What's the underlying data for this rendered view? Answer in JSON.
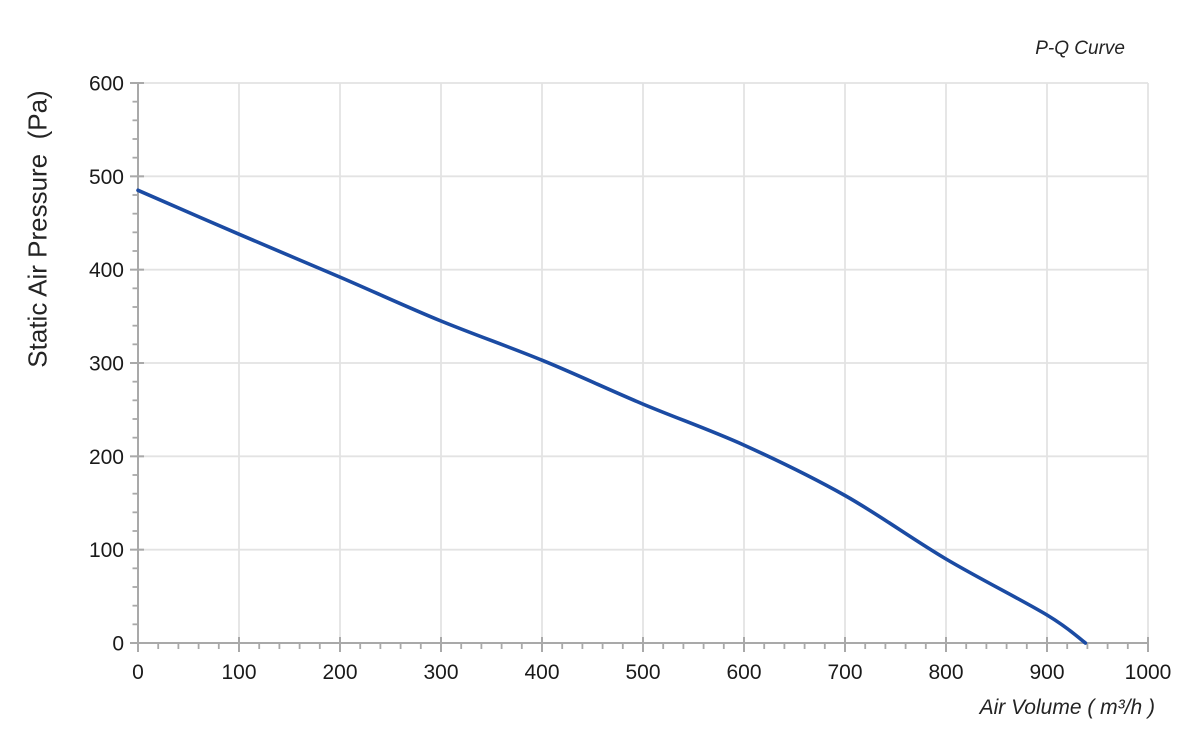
{
  "chart_data": {
    "type": "line",
    "title": "P-Q Curve",
    "xlabel": "Air Volume ( m³/h )",
    "ylabel": "Static Air Pressure  (Pa)",
    "xlim": [
      0,
      1000
    ],
    "ylim": [
      0,
      600
    ],
    "x_major_ticks": [
      0,
      100,
      200,
      300,
      400,
      500,
      600,
      700,
      800,
      900,
      1000
    ],
    "y_major_ticks": [
      0,
      100,
      200,
      300,
      400,
      500,
      600
    ],
    "x_minor_step": 20,
    "y_minor_step": 20,
    "grid": true,
    "legend": "none",
    "series": [
      {
        "name": "P-Q Curve",
        "x": [
          0,
          100,
          200,
          300,
          400,
          500,
          600,
          700,
          800,
          900,
          938
        ],
        "y": [
          485,
          438,
          392,
          345,
          303,
          256,
          212,
          158,
          90,
          30,
          0
        ]
      }
    ],
    "colors": {
      "line": "#1b4ba3",
      "grid": "#e3e3e3",
      "axis": "#a9a9a9",
      "text": "#1a1a1a"
    }
  }
}
